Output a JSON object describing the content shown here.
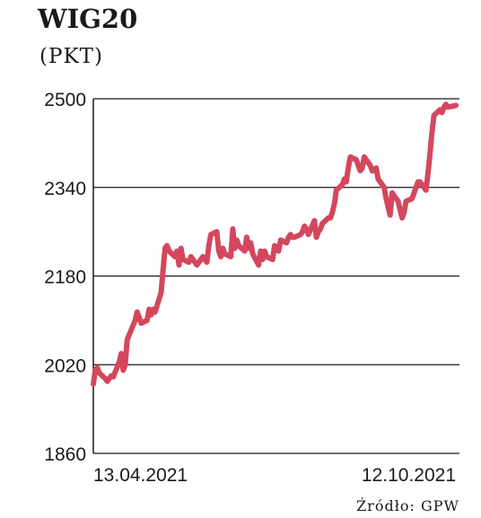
{
  "chart_data": {
    "type": "line",
    "title": "WIG20",
    "subtitle": "(PKT)",
    "source": "Źródło: GPW",
    "xlabel": "",
    "ylabel": "",
    "ylim": [
      1860,
      2500
    ],
    "yticks": [
      1860,
      2020,
      2180,
      2340,
      2500
    ],
    "x_tick_labels": [
      "13.04.2021",
      "12.10.2021"
    ],
    "x_range": [
      "2021-04-13",
      "2021-10-12"
    ],
    "grid": "horizontal",
    "line_color": "#d4475e",
    "series": [
      {
        "x": [
          "2021-04-13",
          "2021-04-14",
          "2021-04-15",
          "2021-04-16",
          "2021-04-19",
          "2021-04-20",
          "2021-04-21",
          "2021-04-22",
          "2021-04-23",
          "2021-04-26",
          "2021-04-27",
          "2021-04-28",
          "2021-04-29",
          "2021-04-30",
          "2021-05-04",
          "2021-05-05",
          "2021-05-06",
          "2021-05-07",
          "2021-05-10",
          "2021-05-11",
          "2021-05-12",
          "2021-05-13",
          "2021-05-14",
          "2021-05-17",
          "2021-05-18",
          "2021-05-19",
          "2021-05-20",
          "2021-05-21",
          "2021-05-24",
          "2021-05-25",
          "2021-05-26",
          "2021-05-27",
          "2021-05-28",
          "2021-05-31",
          "2021-06-01",
          "2021-06-02",
          "2021-06-04",
          "2021-06-07",
          "2021-06-08",
          "2021-06-09",
          "2021-06-10",
          "2021-06-11",
          "2021-06-14",
          "2021-06-15",
          "2021-06-16",
          "2021-06-17",
          "2021-06-18",
          "2021-06-21",
          "2021-06-22",
          "2021-06-23",
          "2021-06-24",
          "2021-06-25",
          "2021-06-28",
          "2021-06-29",
          "2021-06-30",
          "2021-07-01",
          "2021-07-02",
          "2021-07-05",
          "2021-07-06",
          "2021-07-07",
          "2021-07-08",
          "2021-07-09",
          "2021-07-12",
          "2021-07-13",
          "2021-07-14",
          "2021-07-15",
          "2021-07-16",
          "2021-07-19",
          "2021-07-20",
          "2021-07-21",
          "2021-07-22",
          "2021-07-23",
          "2021-07-26",
          "2021-07-27",
          "2021-07-28",
          "2021-07-29",
          "2021-07-30",
          "2021-08-02",
          "2021-08-03",
          "2021-08-04",
          "2021-08-05",
          "2021-08-06",
          "2021-08-09",
          "2021-08-10",
          "2021-08-11",
          "2021-08-12",
          "2021-08-13",
          "2021-08-16",
          "2021-08-17",
          "2021-08-18",
          "2021-08-19",
          "2021-08-20",
          "2021-08-23",
          "2021-08-24",
          "2021-08-25",
          "2021-08-26",
          "2021-08-27",
          "2021-08-30",
          "2021-08-31",
          "2021-09-01",
          "2021-09-02",
          "2021-09-03",
          "2021-09-06",
          "2021-09-07",
          "2021-09-08",
          "2021-09-09",
          "2021-09-10",
          "2021-09-13",
          "2021-09-14",
          "2021-09-15",
          "2021-09-16",
          "2021-09-17",
          "2021-09-20",
          "2021-09-21",
          "2021-09-22",
          "2021-09-23",
          "2021-09-24",
          "2021-09-27",
          "2021-09-28",
          "2021-09-29",
          "2021-09-30",
          "2021-10-01",
          "2021-10-04",
          "2021-10-05",
          "2021-10-06",
          "2021-10-07",
          "2021-10-08",
          "2021-10-11",
          "2021-10-12"
        ],
        "y": [
          1985,
          2010,
          2015,
          2005,
          1995,
          1990,
          1995,
          2000,
          1998,
          2025,
          2040,
          2010,
          2020,
          2065,
          2100,
          2115,
          2105,
          2095,
          2100,
          2120,
          2110,
          2120,
          2115,
          2150,
          2190,
          2230,
          2235,
          2225,
          2215,
          2225,
          2200,
          2230,
          2210,
          2205,
          2215,
          2210,
          2200,
          2215,
          2210,
          2205,
          2235,
          2255,
          2260,
          2225,
          2215,
          2230,
          2220,
          2215,
          2265,
          2230,
          2245,
          2235,
          2225,
          2250,
          2230,
          2240,
          2220,
          2200,
          2225,
          2210,
          2225,
          2215,
          2210,
          2235,
          2230,
          2225,
          2245,
          2240,
          2250,
          2255,
          2250,
          2250,
          2255,
          2260,
          2270,
          2265,
          2255,
          2280,
          2250,
          2260,
          2265,
          2275,
          2285,
          2285,
          2295,
          2310,
          2335,
          2345,
          2355,
          2350,
          2375,
          2395,
          2390,
          2380,
          2370,
          2375,
          2395,
          2380,
          2370,
          2370,
          2375,
          2355,
          2340,
          2320,
          2305,
          2290,
          2330,
          2315,
          2300,
          2285,
          2295,
          2315,
          2320,
          2330,
          2340,
          2350,
          2350,
          2335,
          2365,
          2400,
          2440,
          2470,
          2480,
          2475,
          2485,
          2490,
          2485,
          2487,
          2488
        ]
      }
    ]
  }
}
